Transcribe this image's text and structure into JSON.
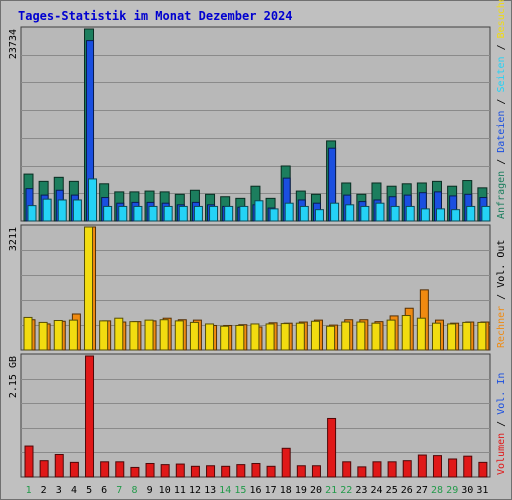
{
  "title": "Tages-Statistik im Monat Dezember 2024",
  "colors": {
    "background": "#c0c0c0",
    "panel": "#b8b8b8",
    "grid": "#8a8a8a",
    "title": "#0000d0",
    "anfragen": "#1c7e5e",
    "dateien": "#1a4fe0",
    "seiten": "#24d2f6",
    "besuche": "#f2dc10",
    "rechner": "#f08a10",
    "volumen": "#e01818",
    "day_weekday": "#000000",
    "day_weekend": "#229a4a"
  },
  "right_labels": {
    "top": [
      {
        "text": "Anfragen",
        "color": "#1c7e5e"
      },
      {
        "text": " / ",
        "color": "#000000"
      },
      {
        "text": "Dateien",
        "color": "#1a4fe0"
      },
      {
        "text": " / ",
        "color": "#000000"
      },
      {
        "text": "Seiten",
        "color": "#24d2f6"
      },
      {
        "text": " / ",
        "color": "#000000"
      },
      {
        "text": "Besuche",
        "color": "#f2dc10"
      }
    ],
    "middle": [
      {
        "text": "Rechner",
        "color": "#f08a10"
      },
      {
        "text": " / ",
        "color": "#000000"
      },
      {
        "text": "Vol. Out",
        "color": "#000000"
      }
    ],
    "bottom": [
      {
        "text": "Volumen",
        "color": "#e01818"
      },
      {
        "text": " / ",
        "color": "#000000"
      },
      {
        "text": "Vol. In",
        "color": "#1a4fe0"
      }
    ]
  },
  "chart_data": [
    {
      "type": "bar",
      "panel": "top",
      "max_label": "23734",
      "ylim": [
        0,
        23734
      ],
      "categories": [
        "1",
        "2",
        "3",
        "4",
        "5",
        "6",
        "7",
        "8",
        "9",
        "10",
        "11",
        "12",
        "13",
        "14",
        "15",
        "16",
        "17",
        "18",
        "19",
        "20",
        "21",
        "22",
        "23",
        "24",
        "25",
        "26",
        "27",
        "28",
        "29",
        "30",
        "31"
      ],
      "series": [
        {
          "name": "Anfragen",
          "color_key": "anfragen",
          "values": [
            5800,
            4900,
            5400,
            4900,
            23734,
            4600,
            3600,
            3600,
            3700,
            3600,
            3300,
            3800,
            3300,
            3000,
            2800,
            4300,
            2800,
            6800,
            3700,
            3300,
            9900,
            4700,
            3300,
            4700,
            4300,
            4600,
            4700,
            4900,
            4300,
            5000,
            4100
          ]
        },
        {
          "name": "Dateien",
          "color_key": "dateien",
          "values": [
            4000,
            3200,
            3800,
            3200,
            22300,
            2900,
            2200,
            2300,
            2300,
            2200,
            2000,
            2300,
            2000,
            1800,
            1700,
            2000,
            1600,
            5300,
            2600,
            2200,
            9000,
            3200,
            2400,
            2600,
            3000,
            3200,
            3500,
            3600,
            3100,
            3300,
            2900
          ]
        },
        {
          "name": "Seiten",
          "color_key": "seiten",
          "values": [
            1900,
            2700,
            2600,
            2600,
            5200,
            1800,
            1800,
            1800,
            1800,
            1800,
            1800,
            1800,
            1800,
            1800,
            1800,
            2500,
            1500,
            2200,
            1800,
            1400,
            2200,
            2000,
            1800,
            2200,
            1800,
            1800,
            1500,
            1500,
            1400,
            1800,
            1800
          ]
        }
      ]
    },
    {
      "type": "bar",
      "panel": "middle",
      "max_label": "3211",
      "ylim": [
        0,
        3211
      ],
      "categories": [
        "1",
        "2",
        "3",
        "4",
        "5",
        "6",
        "7",
        "8",
        "9",
        "10",
        "11",
        "12",
        "13",
        "14",
        "15",
        "16",
        "17",
        "18",
        "19",
        "20",
        "21",
        "22",
        "23",
        "24",
        "25",
        "26",
        "27",
        "28",
        "29",
        "30",
        "31"
      ],
      "series": [
        {
          "name": "Besuche",
          "color_key": "besuche",
          "values": [
            850,
            720,
            770,
            780,
            3211,
            760,
            830,
            740,
            780,
            790,
            760,
            720,
            680,
            620,
            640,
            680,
            680,
            690,
            700,
            750,
            620,
            730,
            730,
            700,
            780,
            900,
            830,
            700,
            680,
            720,
            720
          ]
        },
        {
          "name": "Rechner",
          "color_key": "rechner",
          "values": [
            790,
            680,
            750,
            940,
            3211,
            760,
            730,
            740,
            760,
            830,
            790,
            780,
            640,
            640,
            660,
            600,
            710,
            700,
            730,
            780,
            650,
            790,
            790,
            740,
            890,
            1090,
            1570,
            780,
            700,
            730,
            730
          ]
        }
      ]
    },
    {
      "type": "bar",
      "panel": "bottom",
      "max_label": "2.15 GB",
      "ylim": [
        0,
        2.15
      ],
      "unit": "GB",
      "categories": [
        "1",
        "2",
        "3",
        "4",
        "5",
        "6",
        "7",
        "8",
        "9",
        "10",
        "11",
        "12",
        "13",
        "14",
        "15",
        "16",
        "17",
        "18",
        "19",
        "20",
        "21",
        "22",
        "23",
        "24",
        "25",
        "26",
        "27",
        "28",
        "29",
        "30",
        "31"
      ],
      "series": [
        {
          "name": "Volumen",
          "color_key": "volumen",
          "values": [
            0.55,
            0.29,
            0.4,
            0.26,
            2.15,
            0.27,
            0.27,
            0.17,
            0.24,
            0.22,
            0.23,
            0.19,
            0.2,
            0.19,
            0.22,
            0.24,
            0.19,
            0.51,
            0.2,
            0.2,
            1.04,
            0.27,
            0.18,
            0.27,
            0.27,
            0.29,
            0.39,
            0.38,
            0.32,
            0.37,
            0.26
          ]
        }
      ]
    }
  ],
  "day_labels": [
    {
      "text": "1",
      "weekend": true
    },
    {
      "text": "2",
      "weekend": false
    },
    {
      "text": "3",
      "weekend": false
    },
    {
      "text": "4",
      "weekend": false
    },
    {
      "text": "5",
      "weekend": false
    },
    {
      "text": "6",
      "weekend": false
    },
    {
      "text": "7",
      "weekend": true
    },
    {
      "text": "8",
      "weekend": true
    },
    {
      "text": "9",
      "weekend": false
    },
    {
      "text": "10",
      "weekend": false
    },
    {
      "text": "11",
      "weekend": false
    },
    {
      "text": "12",
      "weekend": false
    },
    {
      "text": "13",
      "weekend": false
    },
    {
      "text": "14",
      "weekend": true
    },
    {
      "text": "15",
      "weekend": true
    },
    {
      "text": "16",
      "weekend": false
    },
    {
      "text": "17",
      "weekend": false
    },
    {
      "text": "18",
      "weekend": false
    },
    {
      "text": "19",
      "weekend": false
    },
    {
      "text": "20",
      "weekend": false
    },
    {
      "text": "21",
      "weekend": true
    },
    {
      "text": "22",
      "weekend": true
    },
    {
      "text": "23",
      "weekend": false
    },
    {
      "text": "24",
      "weekend": false
    },
    {
      "text": "25",
      "weekend": false
    },
    {
      "text": "26",
      "weekend": false
    },
    {
      "text": "27",
      "weekend": false
    },
    {
      "text": "28",
      "weekend": true
    },
    {
      "text": "29",
      "weekend": true
    },
    {
      "text": "30",
      "weekend": false
    },
    {
      "text": "31",
      "weekend": false
    }
  ]
}
